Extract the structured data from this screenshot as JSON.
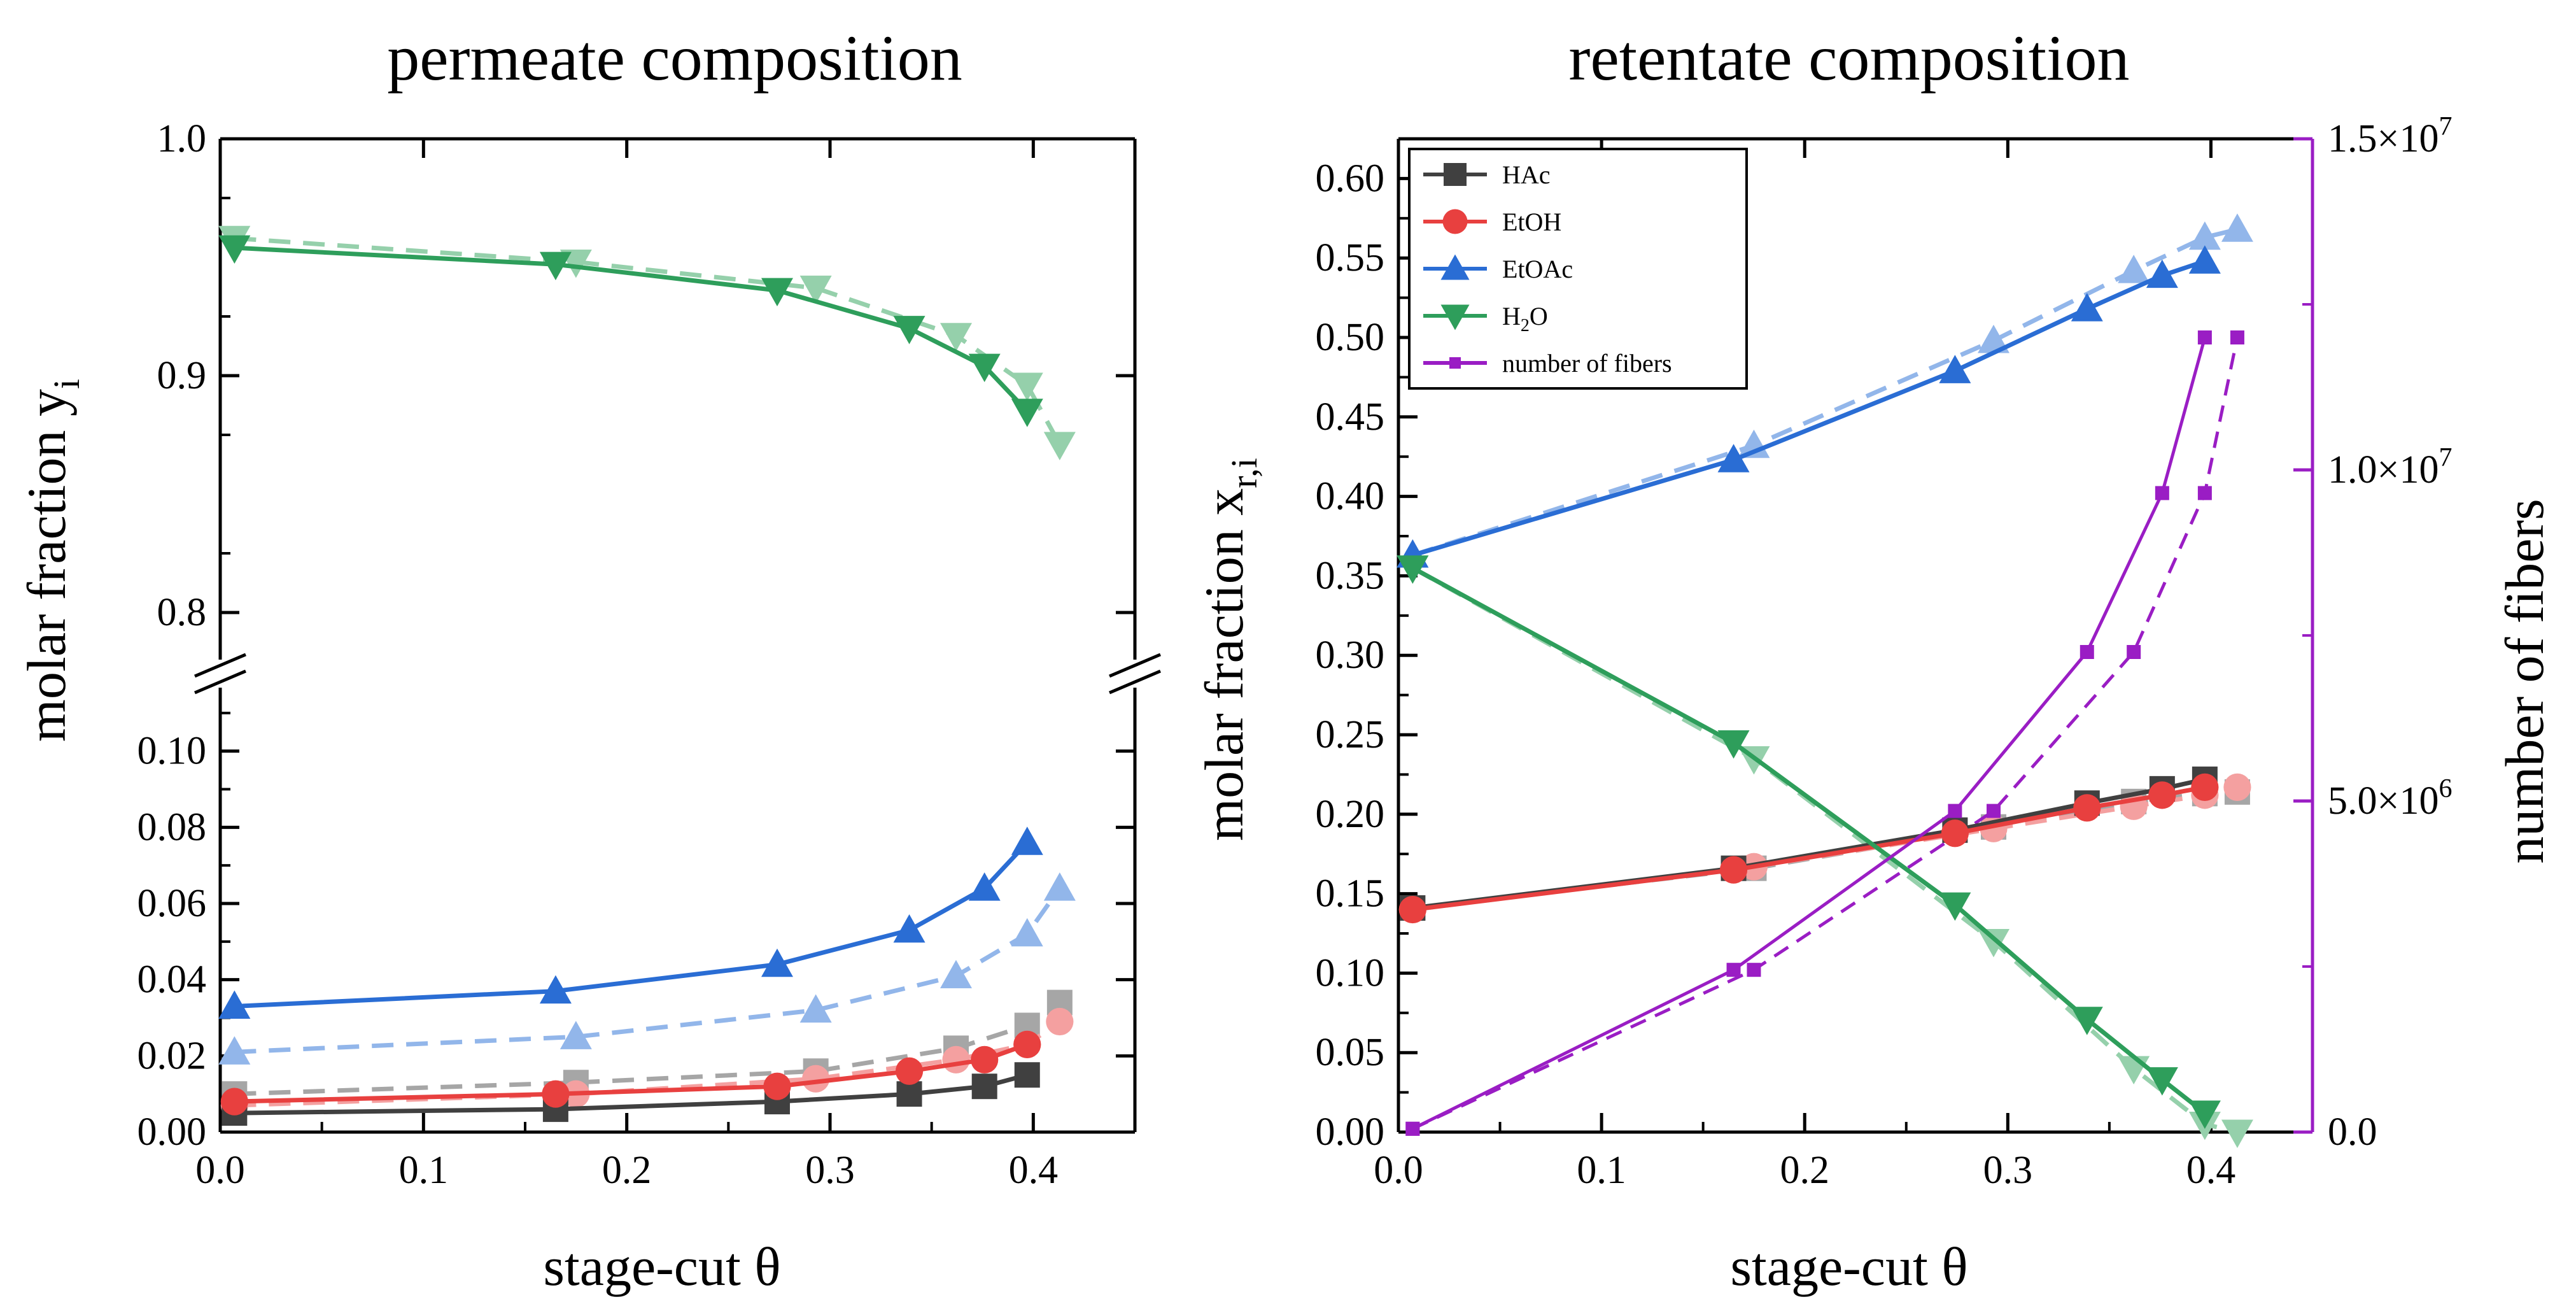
{
  "chart_data": [
    {
      "type": "line",
      "title": "permeate composition",
      "xlabel": "stage-cut θ",
      "ylabel": "molar fraction y",
      "ylabel_sub": "i",
      "xlim": [
        0.0,
        0.45
      ],
      "xticks": [
        "0.0",
        "0.1",
        "0.2",
        "0.3",
        "0.4"
      ],
      "y_break": true,
      "ylim_upper": [
        0.775,
        1.0
      ],
      "yticks_upper": [
        "0.8",
        "0.9",
        "1.0"
      ],
      "ylim_lower": [
        0.0,
        0.12
      ],
      "yticks_lower": [
        "0.00",
        "0.02",
        "0.04",
        "0.06",
        "0.08",
        "0.10"
      ],
      "grid": false,
      "series": [
        {
          "component": "HAc",
          "style": "solid",
          "color": "#404040",
          "marker": "square",
          "x": [
            0.007,
            0.165,
            0.274,
            0.339,
            0.376,
            0.397
          ],
          "y": [
            0.005,
            0.006,
            0.008,
            0.01,
            0.012,
            0.015
          ]
        },
        {
          "component": "HAc",
          "style": "dashed",
          "color": "#a6a6a6",
          "marker": "square",
          "x": [
            0.007,
            0.175,
            0.293,
            0.362,
            0.397,
            0.413
          ],
          "y": [
            0.01,
            0.013,
            0.016,
            0.022,
            0.028,
            0.034
          ]
        },
        {
          "component": "EtOH",
          "style": "solid",
          "color": "#e8403f",
          "marker": "circle",
          "x": [
            0.007,
            0.165,
            0.274,
            0.339,
            0.376,
            0.397
          ],
          "y": [
            0.008,
            0.01,
            0.012,
            0.016,
            0.019,
            0.023
          ]
        },
        {
          "component": "EtOH",
          "style": "dashed",
          "color": "#f4a0a0",
          "marker": "circle",
          "x": [
            0.007,
            0.175,
            0.293,
            0.362,
            0.397,
            0.413
          ],
          "y": [
            0.007,
            0.01,
            0.014,
            0.019,
            0.023,
            0.029
          ]
        },
        {
          "component": "EtOAc",
          "style": "solid",
          "color": "#2a6dd4",
          "marker": "triangle-up",
          "x": [
            0.007,
            0.165,
            0.274,
            0.339,
            0.376,
            0.397
          ],
          "y": [
            0.033,
            0.037,
            0.044,
            0.053,
            0.064,
            0.076
          ]
        },
        {
          "component": "EtOAc",
          "style": "dashed",
          "color": "#92b6ea",
          "marker": "triangle-up",
          "x": [
            0.007,
            0.175,
            0.293,
            0.362,
            0.397,
            0.413
          ],
          "y": [
            0.021,
            0.025,
            0.032,
            0.041,
            0.052,
            0.064
          ]
        },
        {
          "component": "H2O",
          "style": "solid",
          "color": "#2e9e5b",
          "marker": "triangle-down",
          "x": [
            0.007,
            0.165,
            0.274,
            0.339,
            0.376,
            0.397
          ],
          "y": [
            0.954,
            0.947,
            0.936,
            0.92,
            0.904,
            0.885
          ]
        },
        {
          "component": "H2O",
          "style": "dashed",
          "color": "#95d0ab",
          "marker": "triangle-down",
          "x": [
            0.007,
            0.175,
            0.293,
            0.362,
            0.397,
            0.413
          ],
          "y": [
            0.958,
            0.948,
            0.937,
            0.917,
            0.896,
            0.871
          ]
        }
      ]
    },
    {
      "type": "line",
      "title": "retentate composition",
      "xlabel": "stage-cut θ",
      "ylabel": "molar fraction x",
      "ylabel_sub": "r,i",
      "y2label": "number of fibers",
      "xlim": [
        0.0,
        0.45
      ],
      "xticks": [
        "0.0",
        "0.1",
        "0.2",
        "0.3",
        "0.4"
      ],
      "ylim": [
        0.0,
        0.625
      ],
      "yticks": [
        "0.00",
        "0.05",
        "0.10",
        "0.15",
        "0.20",
        "0.25",
        "0.30",
        "0.35",
        "0.40",
        "0.45",
        "0.50",
        "0.55",
        "0.60"
      ],
      "y2lim": [
        0,
        15000000
      ],
      "y2ticks": [
        "0.0",
        "5.0×10",
        "1.0×10",
        "1.5×10"
      ],
      "y2tick_exponents": [
        "",
        "6",
        "7",
        "7"
      ],
      "grid": false,
      "legend": {
        "position": "top-left",
        "entries": [
          {
            "label": "HAc",
            "color": "#404040",
            "marker": "square"
          },
          {
            "label": "EtOH",
            "color": "#e8403f",
            "marker": "circle"
          },
          {
            "label": "EtOAc",
            "color": "#2a6dd4",
            "marker": "triangle-up"
          },
          {
            "label": "H",
            "label_sub": "2",
            "label_end": "O",
            "color": "#2e9e5b",
            "marker": "triangle-down"
          },
          {
            "label": "number of fibers",
            "color": "#9a1dc4",
            "marker": "small-square"
          }
        ]
      },
      "series": [
        {
          "component": "HAc",
          "style": "solid",
          "color": "#404040",
          "marker": "square",
          "x": [
            0.007,
            0.165,
            0.274,
            0.339,
            0.376,
            0.397
          ],
          "y": [
            0.141,
            0.166,
            0.19,
            0.207,
            0.216,
            0.222
          ]
        },
        {
          "component": "HAc",
          "style": "dashed",
          "color": "#a6a6a6",
          "marker": "square",
          "x": [
            0.007,
            0.175,
            0.293,
            0.362,
            0.397,
            0.413
          ],
          "y": [
            0.141,
            0.166,
            0.192,
            0.208,
            0.213,
            0.214
          ]
        },
        {
          "component": "EtOH",
          "style": "solid",
          "color": "#e8403f",
          "marker": "circle",
          "x": [
            0.007,
            0.165,
            0.274,
            0.339,
            0.376,
            0.397
          ],
          "y": [
            0.14,
            0.165,
            0.188,
            0.204,
            0.212,
            0.217
          ]
        },
        {
          "component": "EtOH",
          "style": "dashed",
          "color": "#f4a0a0",
          "marker": "circle",
          "x": [
            0.007,
            0.175,
            0.293,
            0.362,
            0.397,
            0.413
          ],
          "y": [
            0.14,
            0.167,
            0.191,
            0.205,
            0.212,
            0.217
          ]
        },
        {
          "component": "EtOAc",
          "style": "solid",
          "color": "#2a6dd4",
          "marker": "triangle-up",
          "x": [
            0.007,
            0.165,
            0.274,
            0.339,
            0.376,
            0.397
          ],
          "y": [
            0.363,
            0.423,
            0.479,
            0.518,
            0.539,
            0.548
          ]
        },
        {
          "component": "EtOAc",
          "style": "dashed",
          "color": "#92b6ea",
          "marker": "triangle-up",
          "x": [
            0.007,
            0.175,
            0.293,
            0.362,
            0.397,
            0.413
          ],
          "y": [
            0.363,
            0.432,
            0.498,
            0.542,
            0.563,
            0.568
          ]
        },
        {
          "component": "H2O",
          "style": "solid",
          "color": "#2e9e5b",
          "marker": "triangle-down",
          "x": [
            0.007,
            0.165,
            0.274,
            0.339,
            0.376,
            0.397
          ],
          "y": [
            0.355,
            0.245,
            0.143,
            0.071,
            0.033,
            0.012
          ]
        },
        {
          "component": "H2O",
          "style": "dashed",
          "color": "#95d0ab",
          "marker": "triangle-down",
          "x": [
            0.007,
            0.175,
            0.293,
            0.362,
            0.397,
            0.413
          ],
          "y": [
            0.355,
            0.235,
            0.12,
            0.04,
            0.005,
            0.0
          ]
        },
        {
          "component": "number of fibers",
          "style": "solid",
          "color": "#9a1dc4",
          "marker": "small-square",
          "axis": "y2",
          "x": [
            0.007,
            0.165,
            0.274,
            0.339,
            0.376,
            0.397
          ],
          "y": [
            50000,
            2450000,
            4850000,
            7250000,
            9650000,
            12000000
          ]
        },
        {
          "component": "number of fibers",
          "style": "dashed",
          "color": "#9a1dc4",
          "marker": "small-square",
          "axis": "y2",
          "x": [
            0.007,
            0.175,
            0.293,
            0.362,
            0.397,
            0.413
          ],
          "y": [
            50000,
            2450000,
            4850000,
            7250000,
            9650000,
            12000000
          ]
        }
      ]
    }
  ]
}
